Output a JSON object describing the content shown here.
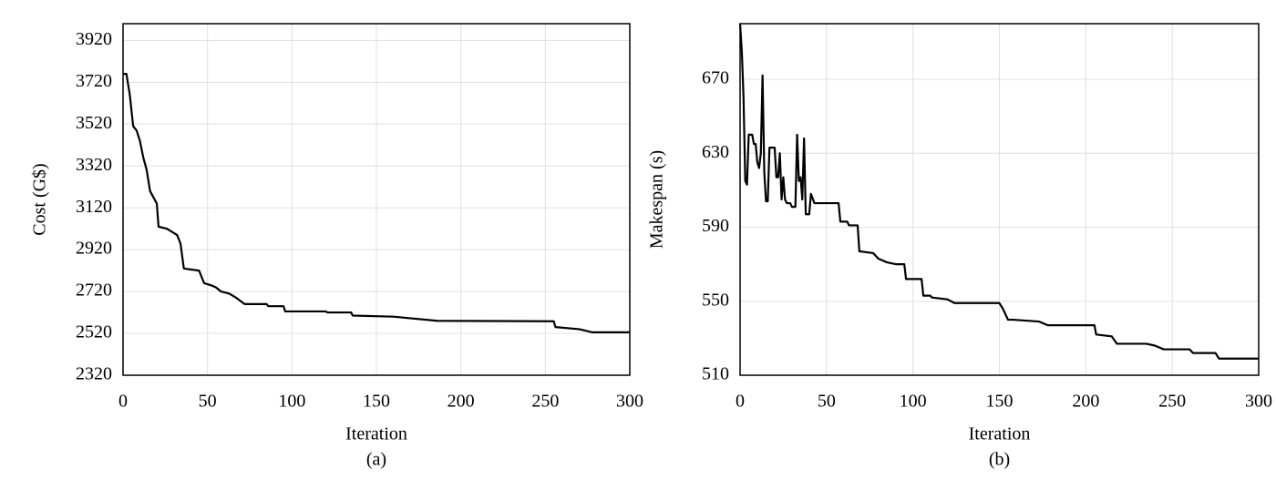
{
  "chart_data": [
    {
      "type": "line",
      "xlabel": "Iteration",
      "ylabel": "Cost (G$)",
      "caption": "(a)",
      "xlim": [
        0,
        300
      ],
      "ylim": [
        2320,
        4000
      ],
      "xticks": [
        0,
        50,
        100,
        150,
        200,
        250,
        300
      ],
      "yticks": [
        2320,
        2520,
        2720,
        2920,
        3120,
        3320,
        3520,
        3720,
        3920
      ],
      "grid": true,
      "series": [
        {
          "color": "#000000",
          "x": [
            0,
            2,
            4,
            6,
            8,
            10,
            12,
            14,
            16,
            18,
            20,
            21,
            26,
            28,
            32,
            34,
            36,
            45,
            48,
            52,
            55,
            58,
            63,
            67,
            72,
            85,
            86,
            95,
            96,
            120,
            121,
            135,
            136,
            160,
            186,
            255,
            256,
            270,
            278,
            300
          ],
          "values": [
            3760,
            3760,
            3660,
            3510,
            3490,
            3440,
            3360,
            3300,
            3200,
            3170,
            3140,
            3030,
            3020,
            3010,
            2990,
            2950,
            2830,
            2820,
            2760,
            2750,
            2740,
            2720,
            2710,
            2690,
            2660,
            2660,
            2650,
            2650,
            2625,
            2625,
            2620,
            2620,
            2605,
            2600,
            2580,
            2578,
            2550,
            2540,
            2525,
            2525
          ]
        }
      ]
    },
    {
      "type": "line",
      "xlabel": "Iteration",
      "ylabel": "Makespan (s)",
      "caption": "(b)",
      "xlim": [
        0,
        300
      ],
      "ylim": [
        510,
        700
      ],
      "xticks": [
        0,
        50,
        100,
        150,
        200,
        250,
        300
      ],
      "yticks": [
        510,
        550,
        590,
        630,
        670
      ],
      "grid": true,
      "series": [
        {
          "color": "#000000",
          "x": [
            0,
            1,
            2,
            3,
            4,
            5,
            7,
            8,
            9,
            10,
            11,
            12,
            13,
            14,
            15,
            16,
            17,
            20,
            21,
            22,
            23,
            24,
            25,
            26,
            27,
            29,
            30,
            32,
            33,
            34,
            35,
            36,
            37,
            38,
            40,
            41,
            43,
            57,
            58,
            62,
            63,
            68,
            69,
            77,
            80,
            85,
            90,
            95,
            96,
            105,
            106,
            110,
            111,
            120,
            124,
            150,
            152,
            155,
            158,
            173,
            178,
            190,
            205,
            206,
            215,
            218,
            235,
            240,
            245,
            260,
            262,
            275,
            277,
            300
          ],
          "values": [
            700,
            685,
            660,
            615,
            613,
            640,
            640,
            635,
            635,
            625,
            622,
            630,
            672,
            620,
            604,
            604,
            633,
            633,
            617,
            617,
            630,
            605,
            617,
            605,
            603,
            603,
            601,
            601,
            640,
            615,
            617,
            605,
            638,
            597,
            597,
            608,
            603,
            603,
            593,
            593,
            591,
            591,
            577,
            576,
            573,
            571,
            570,
            570,
            562,
            562,
            553,
            553,
            552,
            551,
            549,
            549,
            546,
            540,
            540,
            539,
            537,
            537,
            537,
            532,
            531,
            527,
            527,
            526,
            524,
            524,
            522,
            522,
            519,
            519
          ]
        }
      ]
    }
  ]
}
